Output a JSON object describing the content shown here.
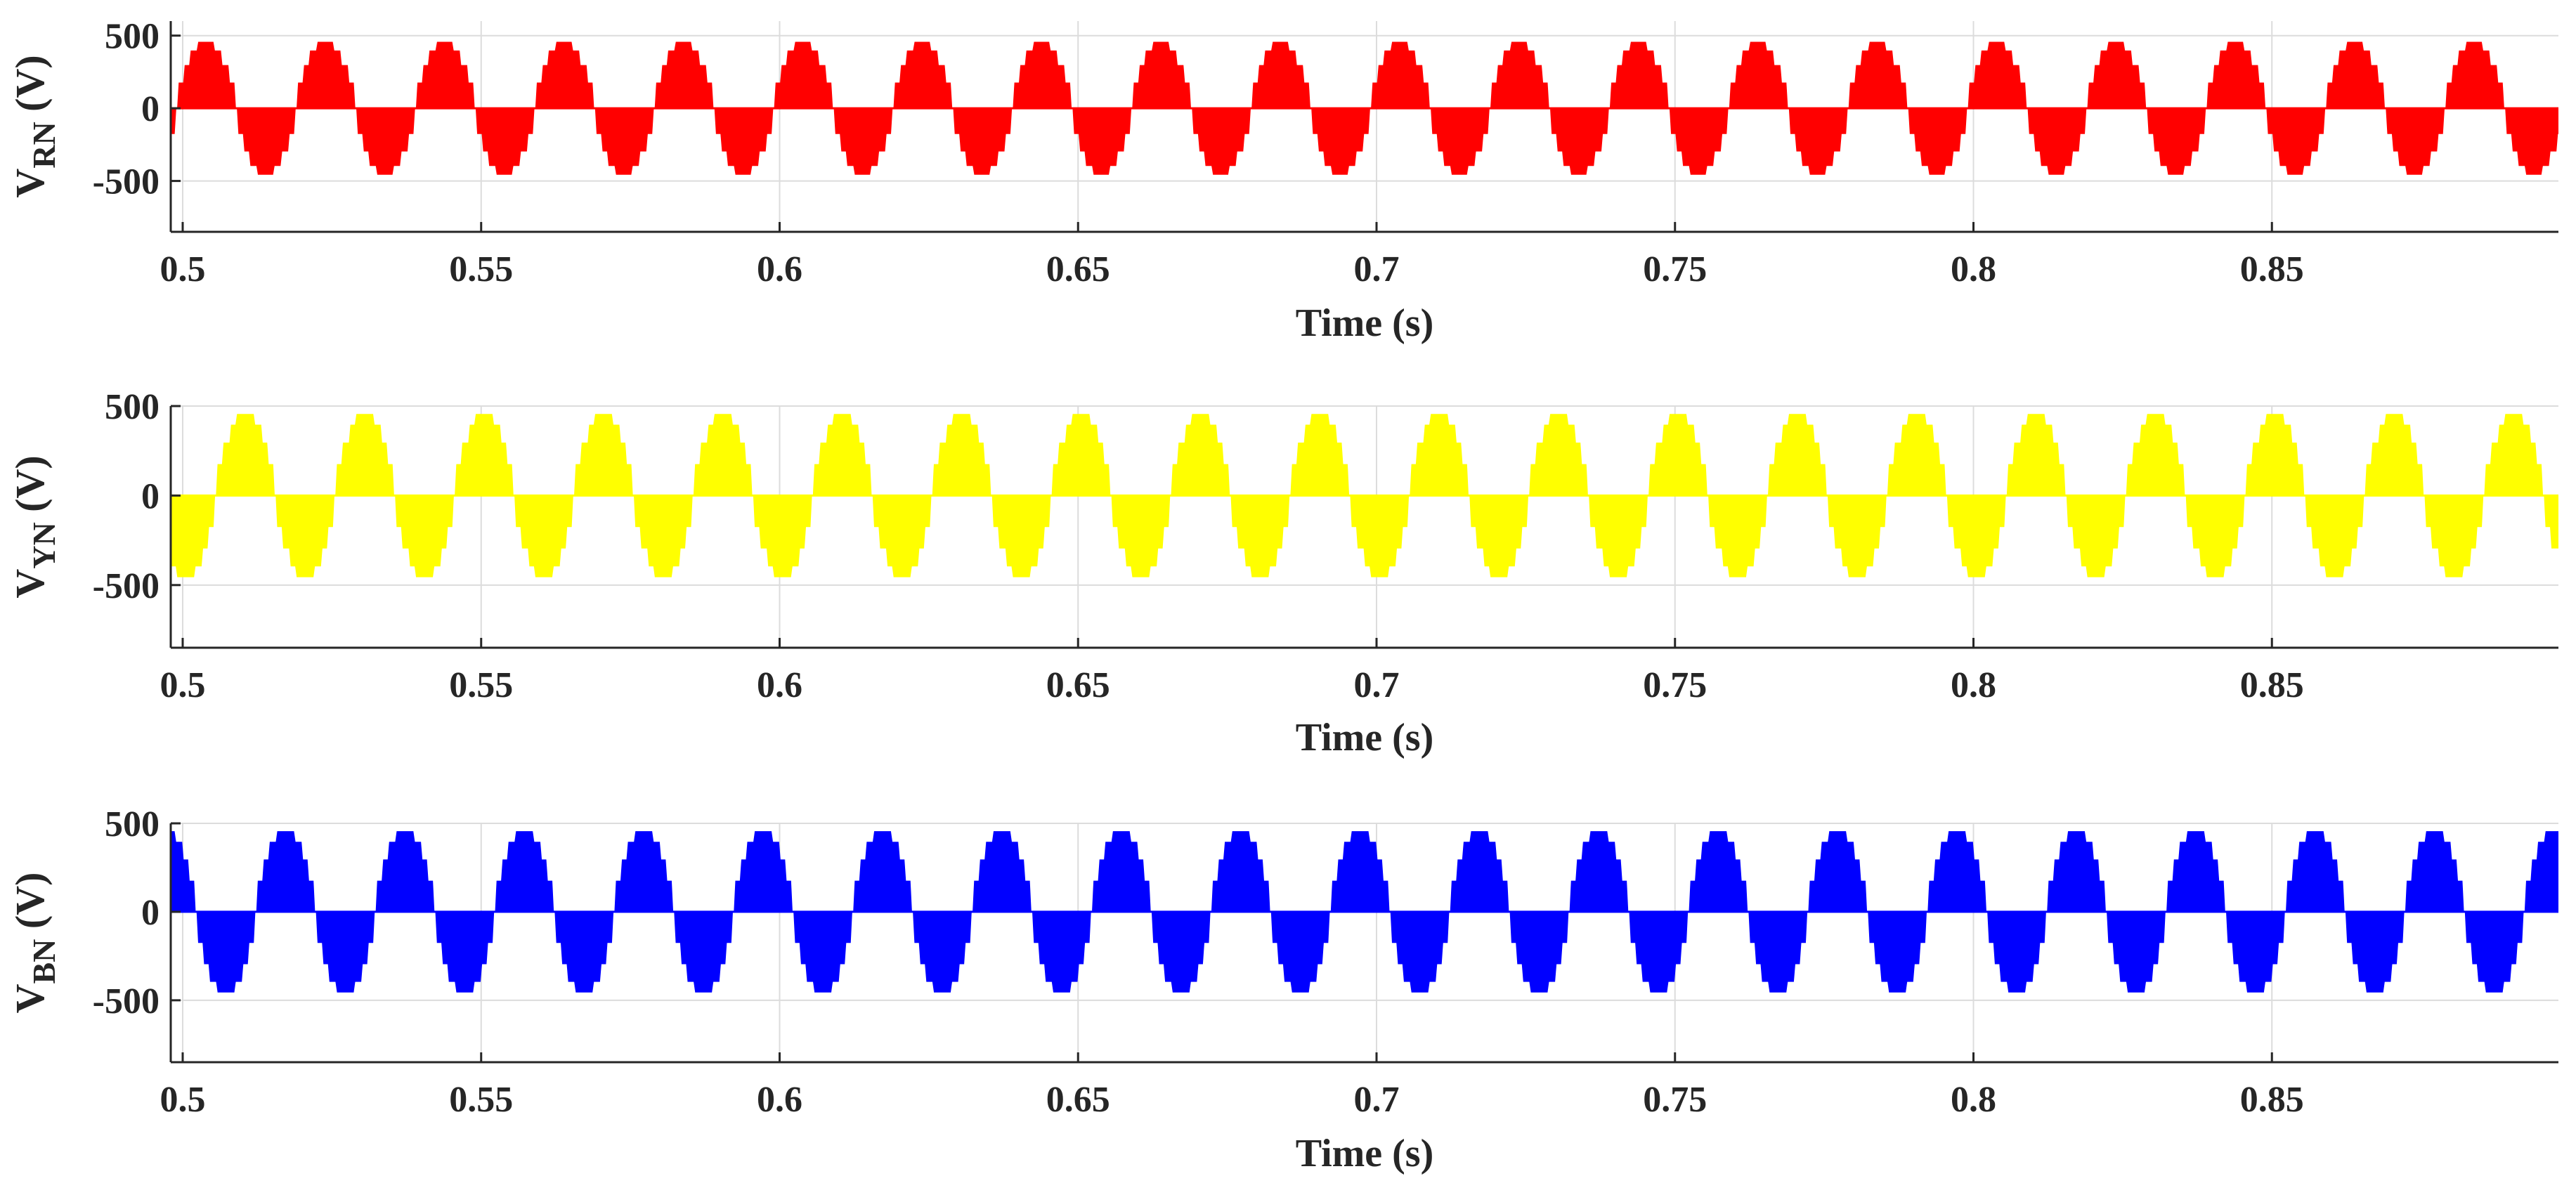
{
  "chart_data": [
    {
      "type": "line",
      "subplot": "top",
      "xlabel": "Time (s)",
      "ylabel": {
        "main": "V",
        "sub": "RN",
        "unit": "(V)"
      },
      "xlim": [
        0.498,
        0.898
      ],
      "ylim": [
        -850,
        600
      ],
      "xticks": [
        0.5,
        0.55,
        0.6,
        0.65,
        0.7,
        0.75,
        0.8,
        0.85
      ],
      "xtick_labels": [
        "0.5",
        "0.55",
        "0.6",
        "0.65",
        "0.7",
        "0.75",
        "0.8",
        "0.85"
      ],
      "yticks": [
        -500,
        0,
        500
      ],
      "ytick_labels": [
        "-500",
        "0",
        "500"
      ],
      "grid": true,
      "series": [
        {
          "color": "#ff0000",
          "waveform": "stepped multilevel sine",
          "frequency_hz": 50,
          "amplitude": 450,
          "phase_deg": 0,
          "levels": [
            0,
            170,
            290,
            390,
            450
          ]
        }
      ]
    },
    {
      "type": "line",
      "subplot": "middle",
      "xlabel": "Time (s)",
      "ylabel": {
        "main": "V",
        "sub": "YN",
        "unit": "(V)"
      },
      "xlim": [
        0.498,
        0.898
      ],
      "ylim": [
        -850,
        500
      ],
      "xticks": [
        0.5,
        0.55,
        0.6,
        0.65,
        0.7,
        0.75,
        0.8,
        0.85
      ],
      "xtick_labels": [
        "0.5",
        "0.55",
        "0.6",
        "0.65",
        "0.7",
        "0.75",
        "0.8",
        "0.85"
      ],
      "yticks": [
        -500,
        0,
        500
      ],
      "ytick_labels": [
        "-500",
        "0",
        "500"
      ],
      "grid": true,
      "series": [
        {
          "color": "#ffff00",
          "waveform": "stepped multilevel sine",
          "frequency_hz": 50,
          "amplitude": 450,
          "phase_deg": -120,
          "levels": [
            0,
            170,
            290,
            390,
            450
          ]
        }
      ]
    },
    {
      "type": "line",
      "subplot": "bottom",
      "xlabel": "Time (s)",
      "ylabel": {
        "main": "V",
        "sub": "BN",
        "unit": "(V)"
      },
      "xlim": [
        0.498,
        0.898
      ],
      "ylim": [
        -850,
        500
      ],
      "xticks": [
        0.5,
        0.55,
        0.6,
        0.65,
        0.7,
        0.75,
        0.8,
        0.85
      ],
      "xtick_labels": [
        "0.5",
        "0.55",
        "0.6",
        "0.65",
        "0.7",
        "0.75",
        "0.8",
        "0.85"
      ],
      "yticks": [
        -500,
        0,
        500
      ],
      "ytick_labels": [
        "-500",
        "0",
        "500"
      ],
      "grid": true,
      "series": [
        {
          "color": "#0000ff",
          "waveform": "stepped multilevel sine",
          "frequency_hz": 50,
          "amplitude": 450,
          "phase_deg": 120,
          "levels": [
            0,
            170,
            290,
            390,
            450
          ]
        }
      ]
    }
  ]
}
